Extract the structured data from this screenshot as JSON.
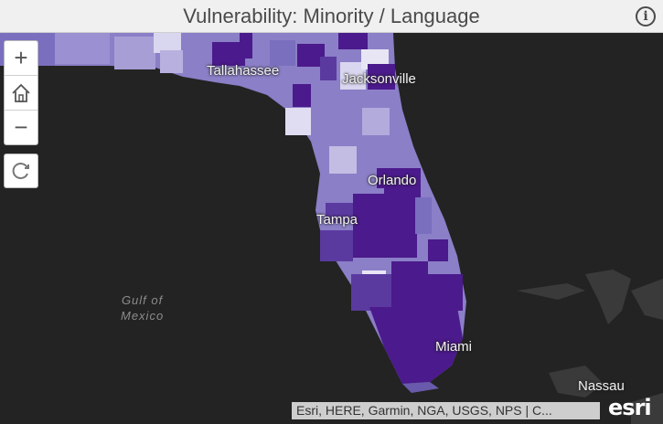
{
  "header": {
    "title": "Vulnerability: Minority / Language",
    "info_icon": "info-icon"
  },
  "controls": {
    "zoom_in_label": "+",
    "home_icon": "home-icon",
    "zoom_out_label": "−",
    "refresh_icon": "refresh-icon"
  },
  "map": {
    "place_labels": [
      "Tallahassee",
      "Jacksonville",
      "Orlando",
      "Tampa",
      "Miami",
      "Nassau"
    ],
    "water_label_line1": "Gulf of",
    "water_label_line2": "Mexico",
    "colors": {
      "background": "#232323",
      "level_light": "#d9d6ef",
      "level_mid": "#8b7fc7",
      "level_dark": "#5a3a9f",
      "level_darkest": "#4b1a8c"
    }
  },
  "attribution": "Esri, HERE, Garmin, NGA, USGS, NPS | C...",
  "logo": "esri"
}
